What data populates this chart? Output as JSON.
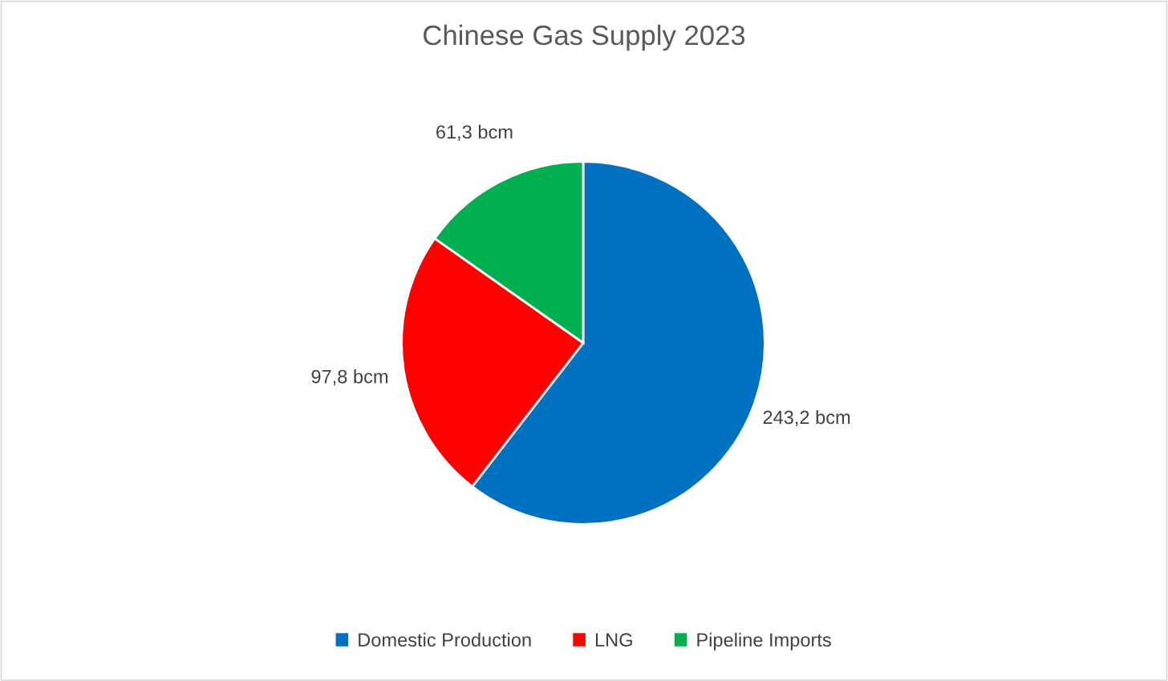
{
  "chart_data": {
    "type": "pie",
    "title": "Chinese Gas Supply 2023",
    "categories": [
      "Domestic Production",
      "LNG",
      "Pipeline Imports"
    ],
    "values": [
      243.2,
      97.8,
      61.3
    ],
    "value_labels": [
      "243,2 bcm",
      "97,8 bcm",
      "61,3 bcm"
    ],
    "colors": [
      "#0070c0",
      "#ff0000",
      "#00b050"
    ],
    "legend": "bottom"
  }
}
